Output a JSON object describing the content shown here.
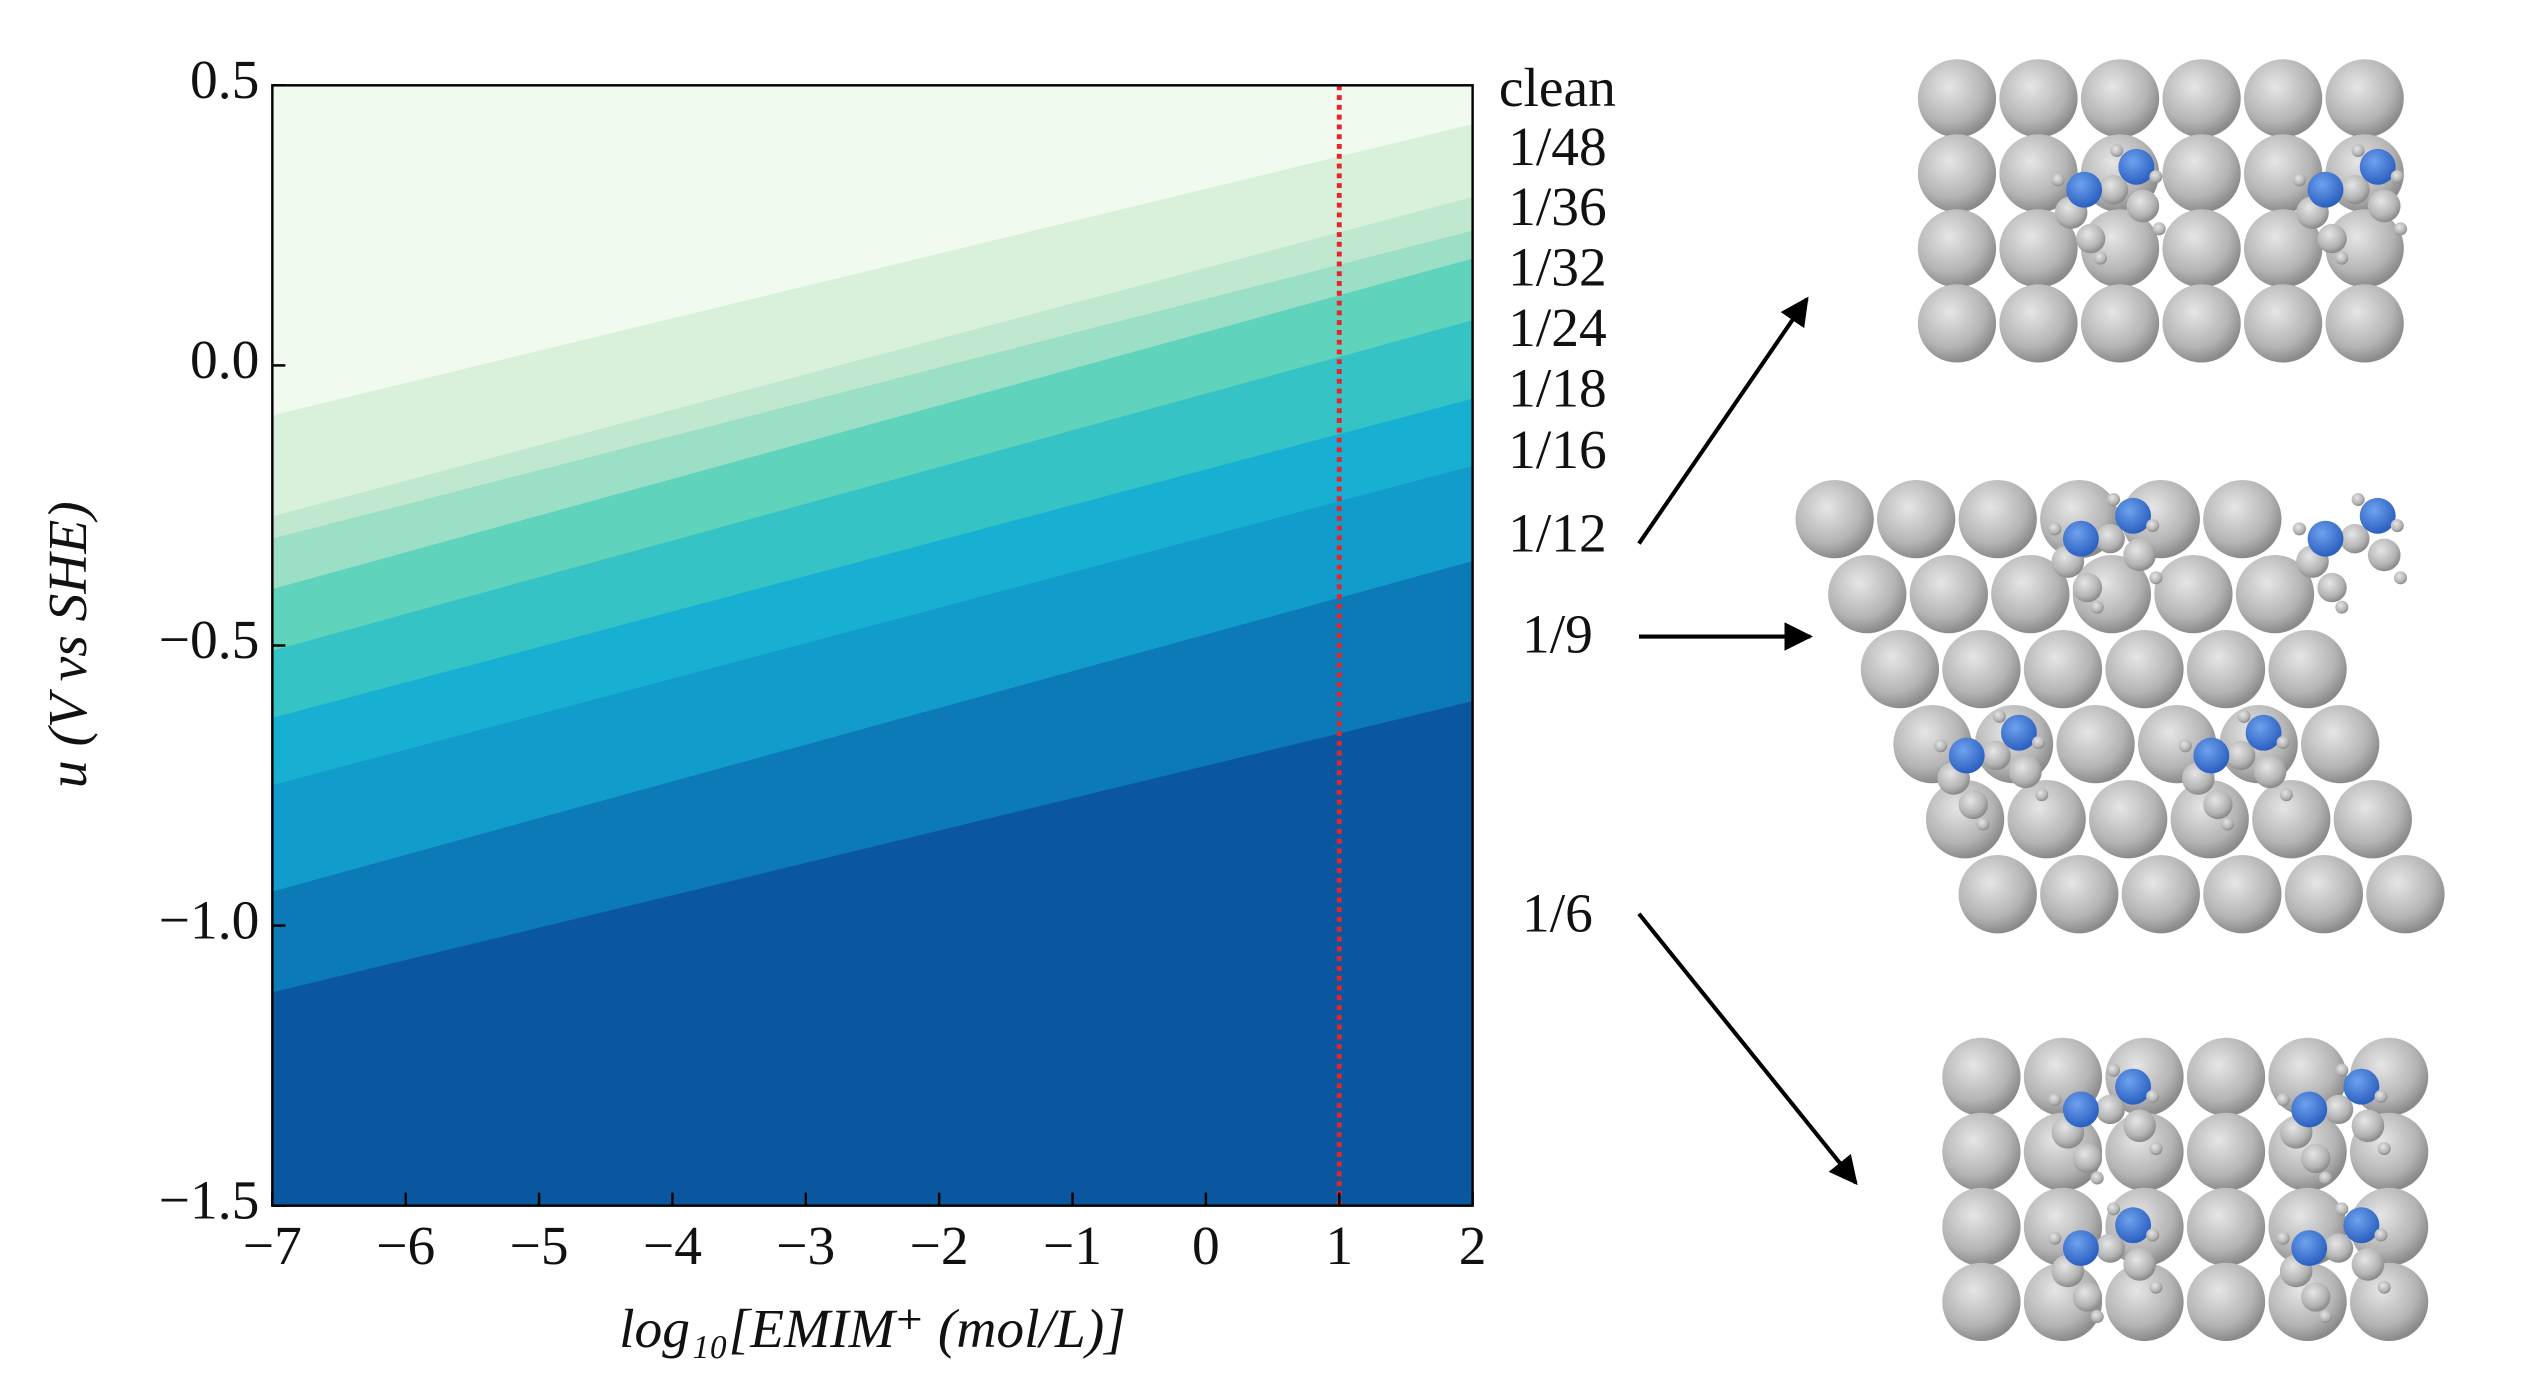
{
  "chart_data": {
    "type": "phase",
    "xlabel": "log₁₀[EMIM⁺ (mol/L)]",
    "ylabel": "u  (V vs SHE)",
    "xlim": [
      -7,
      2
    ],
    "ylim": [
      -1.5,
      0.5
    ],
    "xticks": [
      {
        "value": -7,
        "label": "−7"
      },
      {
        "value": -6,
        "label": "−6"
      },
      {
        "value": -5,
        "label": "−5"
      },
      {
        "value": -4,
        "label": "−4"
      },
      {
        "value": -3,
        "label": "−3"
      },
      {
        "value": -2,
        "label": "−2"
      },
      {
        "value": -1,
        "label": "−1"
      },
      0,
      1,
      2
    ],
    "yticks": [
      {
        "value": -1.5,
        "label": "−1.5"
      },
      {
        "value": -1.0,
        "label": "−1.0"
      },
      {
        "value": -0.5,
        "label": "−0.5"
      },
      {
        "value": 0,
        "label": "0.0"
      },
      0.5
    ],
    "x": [
      -7,
      2
    ],
    "series": [
      {
        "name": "clean",
        "color": "#f1faef"
      },
      {
        "name": "1/48",
        "color": "#d9f1da"
      },
      {
        "name": "1/36",
        "color": "#bfe8cf"
      },
      {
        "name": "1/32",
        "color": "#9adfc6"
      },
      {
        "name": "1/24",
        "color": "#5fd3bb"
      },
      {
        "name": "1/18",
        "color": "#35c3c5"
      },
      {
        "name": "1/16",
        "color": "#17b0d2"
      },
      {
        "name": "1/12",
        "color": "#129ccc"
      },
      {
        "name": "1/9",
        "color": "#0c7ab6"
      },
      {
        "name": "1/6",
        "color": "#0a579f"
      }
    ],
    "boundaries": [
      {
        "values": [
          -0.09,
          0.43
        ]
      },
      {
        "values": [
          -0.27,
          0.3
        ]
      },
      {
        "values": [
          -0.31,
          0.24
        ]
      },
      {
        "values": [
          -0.4,
          0.19
        ]
      },
      {
        "values": [
          -0.51,
          0.08
        ]
      },
      {
        "values": [
          -0.63,
          -0.06
        ]
      },
      {
        "values": [
          -0.75,
          -0.18
        ]
      },
      {
        "values": [
          -0.94,
          -0.35
        ]
      },
      {
        "values": [
          -1.12,
          -0.6
        ]
      }
    ],
    "marker_x": 1,
    "marker_color": "#e8242a"
  }
}
